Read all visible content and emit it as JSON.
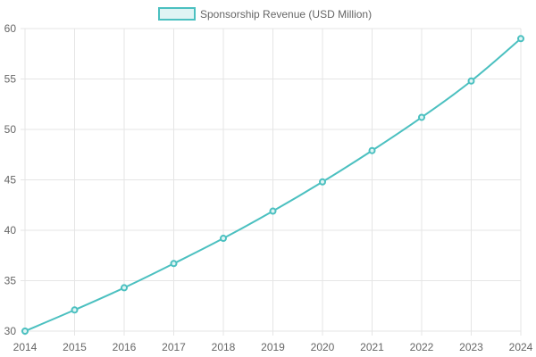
{
  "chart_data": {
    "type": "line",
    "title": "",
    "xlabel": "",
    "ylabel": "",
    "x": [
      "2014",
      "2015",
      "2016",
      "2017",
      "2018",
      "2019",
      "2020",
      "2021",
      "2022",
      "2023",
      "2024"
    ],
    "series": [
      {
        "name": "Sponsorship Revenue (USD Million)",
        "values": [
          30.0,
          32.1,
          34.3,
          36.7,
          39.2,
          41.9,
          44.8,
          47.9,
          51.2,
          54.8,
          59.0
        ],
        "color": "#4bc0c0",
        "fill": "#dff4f4"
      }
    ],
    "ylim": [
      30,
      60
    ],
    "yticks": [
      "30",
      "35",
      "40",
      "45",
      "50",
      "55",
      "60"
    ],
    "grid": true,
    "legend_position": "top-center",
    "grid_color": "#e5e5e5",
    "text_color": "#666666"
  }
}
